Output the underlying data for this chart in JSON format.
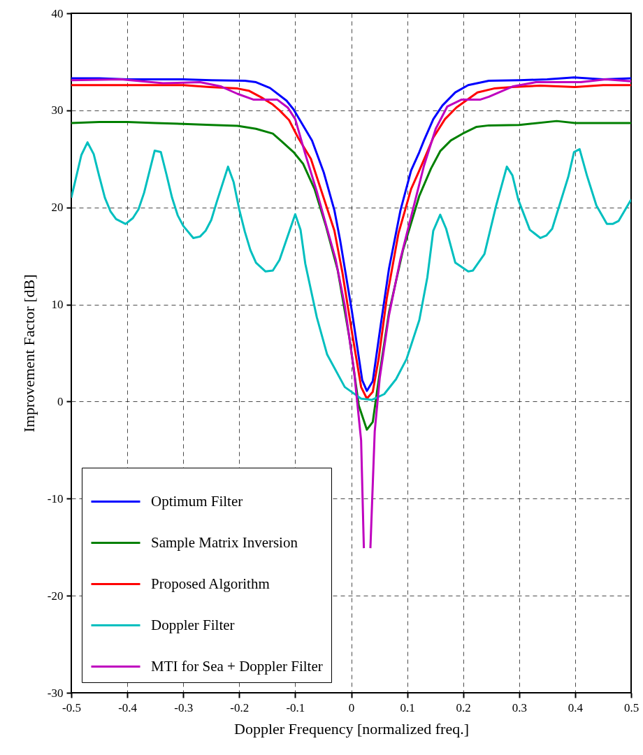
{
  "chart_data": {
    "type": "line",
    "xlabel": "Doppler Frequency [normalized freq.]",
    "ylabel": "Improvement Factor [dB]",
    "xlim": [
      -0.5,
      0.5
    ],
    "xticks": [
      -0.5,
      -0.4,
      -0.3,
      -0.2,
      -0.1,
      0,
      0.1,
      0.2,
      0.3,
      0.4,
      0.5
    ],
    "ylim": [
      -30,
      40
    ],
    "yticks": [
      -30,
      -20,
      -10,
      0,
      10,
      20,
      30,
      40
    ],
    "grid": true,
    "legend": "bottom left",
    "marker": "none",
    "line_style": "solid",
    "series": [
      {
        "name": "Optimum Filter",
        "color": "#0000ff",
        "x": [
          -0.5,
          -0.45,
          -0.4,
          -0.35,
          -0.3,
          -0.25,
          -0.19,
          -0.17,
          -0.145,
          -0.1155,
          -0.103,
          -0.07,
          -0.049,
          -0.03,
          -0.0197,
          0.001,
          0.0197,
          0.028,
          0.0385,
          0.053,
          0.0675,
          0.088,
          0.107,
          0.1217,
          0.13,
          0.1467,
          0.163,
          0.186,
          0.209,
          0.246,
          0.3,
          0.35,
          0.398,
          0.45,
          0.5
        ],
        "values": [
          33.3,
          33.3,
          33.2,
          33.2,
          33.2,
          33.1,
          33.05,
          32.9,
          32.3,
          31.0,
          30.1,
          26.9,
          23.6,
          19.7,
          16.6,
          9.4,
          2.2,
          1.1,
          2.1,
          8.0,
          13.7,
          19.7,
          23.8,
          25.7,
          26.9,
          29.1,
          30.5,
          31.85,
          32.6,
          33.05,
          33.1,
          33.2,
          33.4,
          33.2,
          33.3
        ]
      },
      {
        "name": "Sample Matrix Inversion",
        "color": "#008000",
        "x": [
          -0.5,
          -0.45,
          -0.4,
          -0.35,
          -0.3,
          -0.25,
          -0.203,
          -0.17,
          -0.14,
          -0.124,
          -0.103,
          -0.086,
          -0.0655,
          -0.045,
          -0.024,
          -0.003,
          0.0135,
          0.028,
          0.0385,
          0.049,
          0.0675,
          0.0925,
          0.1217,
          0.1425,
          0.159,
          0.178,
          0.199,
          0.224,
          0.246,
          0.3,
          0.367,
          0.4,
          0.45,
          0.5
        ],
        "values": [
          28.7,
          28.8,
          28.8,
          28.7,
          28.6,
          28.5,
          28.4,
          28.1,
          27.6,
          26.8,
          25.7,
          24.5,
          21.9,
          18.05,
          13.5,
          6.5,
          -0.4,
          -2.9,
          -2.1,
          2.2,
          9.2,
          15.6,
          21.2,
          24.0,
          25.8,
          26.9,
          27.6,
          28.3,
          28.45,
          28.5,
          28.9,
          28.7,
          28.7,
          28.7
        ]
      },
      {
        "name": "Proposed Algorithm",
        "color": "#ff0000",
        "x": [
          -0.5,
          -0.4,
          -0.3,
          -0.253,
          -0.203,
          -0.182,
          -0.161,
          -0.14,
          -0.128,
          -0.111,
          -0.095,
          -0.072,
          -0.053,
          -0.03,
          -0.0156,
          0.001,
          0.0177,
          0.028,
          0.0385,
          0.049,
          0.0634,
          0.0843,
          0.107,
          0.1217,
          0.138,
          0.1467,
          0.1675,
          0.188,
          0.2255,
          0.255,
          0.288,
          0.338,
          0.4,
          0.45,
          0.5
        ],
        "values": [
          32.6,
          32.6,
          32.6,
          32.4,
          32.25,
          32.0,
          31.35,
          30.6,
          30.0,
          29.0,
          27.2,
          25.0,
          21.65,
          17.6,
          13.25,
          7.25,
          1.5,
          0.3,
          1.0,
          4.4,
          10.6,
          17.3,
          21.9,
          23.8,
          26.0,
          27.2,
          29.1,
          30.3,
          31.85,
          32.25,
          32.4,
          32.55,
          32.4,
          32.6,
          32.6
        ]
      },
      {
        "name": "Doppler Filter",
        "color": "#00bfbf",
        "x": [
          -0.5,
          -0.482,
          -0.471,
          -0.46,
          -0.45,
          -0.44,
          -0.43,
          -0.42,
          -0.403,
          -0.39,
          -0.38,
          -0.37,
          -0.351,
          -0.34,
          -0.33,
          -0.32,
          -0.31,
          -0.3,
          -0.282,
          -0.27,
          -0.26,
          -0.25,
          -0.24,
          -0.22,
          -0.21,
          -0.2,
          -0.19,
          -0.18,
          -0.17,
          -0.153,
          -0.14,
          -0.128,
          -0.1,
          -0.0905,
          -0.082,
          -0.0615,
          -0.043,
          -0.0115,
          0.0177,
          0.0365,
          0.059,
          0.08,
          0.099,
          0.1217,
          0.136,
          0.1466,
          0.159,
          0.1696,
          0.186,
          0.209,
          0.2175,
          0.238,
          0.259,
          0.278,
          0.288,
          0.2985,
          0.319,
          0.338,
          0.3485,
          0.359,
          0.388,
          0.398,
          0.408,
          0.421,
          0.438,
          0.4567,
          0.467,
          0.4775,
          0.5
        ],
        "values": [
          21.0,
          25.4,
          26.7,
          25.5,
          23.2,
          21.0,
          19.6,
          18.8,
          18.3,
          18.9,
          19.8,
          21.5,
          25.85,
          25.7,
          23.4,
          21.0,
          19.2,
          18.1,
          16.85,
          17.0,
          17.6,
          18.7,
          20.6,
          24.2,
          22.6,
          19.8,
          17.5,
          15.6,
          14.3,
          13.4,
          13.5,
          14.6,
          19.3,
          17.7,
          14.2,
          8.7,
          4.85,
          1.5,
          0.3,
          0.17,
          0.77,
          2.3,
          4.4,
          8.4,
          12.8,
          17.6,
          19.25,
          17.8,
          14.3,
          13.4,
          13.5,
          15.2,
          20.2,
          24.2,
          23.3,
          20.8,
          17.7,
          16.85,
          17.1,
          17.8,
          23.2,
          25.7,
          26.0,
          23.3,
          20.2,
          18.3,
          18.3,
          18.6,
          20.8
        ]
      },
      {
        "name": "MTI for Sea + Doppler Filter",
        "color": "#bf00bf",
        "x": [
          -0.5,
          -0.411,
          -0.336,
          -0.27,
          -0.232,
          -0.203,
          -0.174,
          -0.132,
          -0.1135,
          -0.1,
          -0.082,
          -0.0615,
          -0.0406,
          -0.028,
          -0.0115,
          0.005,
          0.0177,
          0.0226,
          0.03,
          0.0343,
          0.042,
          0.051,
          0.0675,
          0.088,
          0.109,
          0.13,
          0.151,
          0.1717,
          0.1967,
          0.23,
          0.246,
          0.288,
          0.33,
          0.41,
          0.4545,
          0.5
        ],
        "values": [
          33.1,
          33.2,
          32.8,
          32.9,
          32.45,
          31.7,
          31.1,
          31.1,
          30.3,
          29.1,
          25.5,
          21.65,
          17.3,
          14.7,
          9.9,
          3.2,
          -4.0,
          -15.1,
          null,
          -15.1,
          -3.1,
          2.45,
          8.9,
          14.7,
          19.5,
          24.3,
          28.1,
          30.4,
          31.1,
          31.1,
          31.4,
          32.45,
          32.9,
          32.9,
          33.2,
          33.0
        ]
      }
    ]
  }
}
